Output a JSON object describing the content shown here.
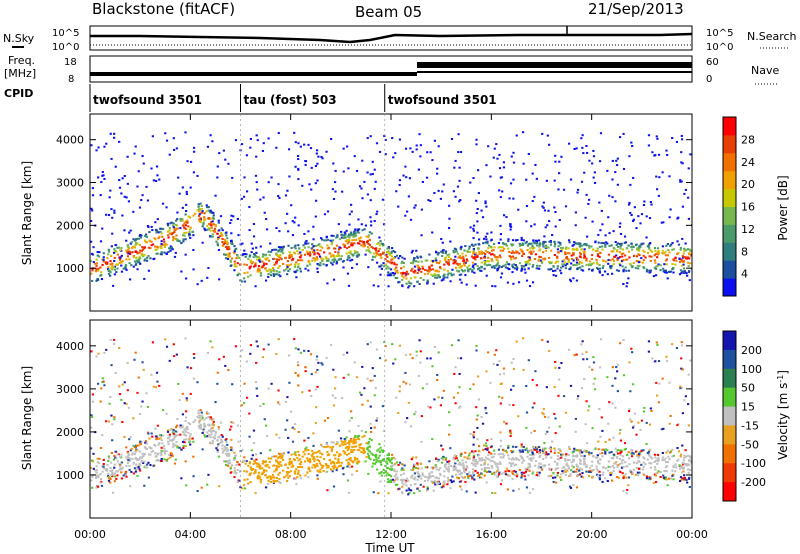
{
  "header": {
    "station": "Blackstone (fitACF)",
    "beam": "Beam 05",
    "date": "21/Sep/2013"
  },
  "top_labels": {
    "nsky": "N.Sky",
    "freq_line1": "Freq.",
    "freq_line2": "[MHz]",
    "cpid": "CPID",
    "nsearch": "N.Search",
    "nave": "Nave"
  },
  "noise_panel": {
    "left_ticks": [
      "10^5",
      "10^0"
    ],
    "right_ticks": [
      "10^5",
      "10^0"
    ]
  },
  "freq_panel": {
    "left_ticks": [
      "18",
      "8"
    ],
    "right_ticks": [
      "60",
      "0"
    ]
  },
  "cpid_segments": [
    {
      "label": "twofsound 3501",
      "start_hour": 0,
      "end_hour": 6
    },
    {
      "label": "tau (fost) 503",
      "start_hour": 6,
      "end_hour": 11.75
    },
    {
      "label": "twofsound 3501",
      "start_hour": 11.75,
      "end_hour": 24
    }
  ],
  "x_axis": {
    "label": "Time UT",
    "ticks": [
      "00:00",
      "04:00",
      "08:00",
      "12:00",
      "16:00",
      "20:00",
      "00:00"
    ],
    "tick_hours": [
      0,
      4,
      8,
      12,
      16,
      20,
      24
    ]
  },
  "y_axis": {
    "label": "Slant Range [km]",
    "ticks": [
      "1000",
      "2000",
      "3000",
      "4000"
    ],
    "tick_values": [
      1000,
      2000,
      3000,
      4000
    ],
    "range": [
      0,
      4600
    ]
  },
  "power_colorbar": {
    "label": "Power [dB]",
    "ticks": [
      "4",
      "8",
      "12",
      "16",
      "20",
      "24",
      "28"
    ],
    "colors": [
      "#0b10f0",
      "#1d4fa0",
      "#2f7d7d",
      "#4a9a6a",
      "#76b84d",
      "#c8c800",
      "#f0a000",
      "#f07000",
      "#e84000",
      "#ff0000"
    ]
  },
  "velocity_colorbar": {
    "label_main": "Velocity [m s",
    "label_sup": "-1",
    "label_end": "]",
    "ticks": [
      "200",
      "100",
      "50",
      "15",
      "-15",
      "-50",
      "-100",
      "-200"
    ],
    "colors": [
      "#1515b0",
      "#2050a0",
      "#2a8050",
      "#55c830",
      "#c0c0c0",
      "#e8a020",
      "#f07000",
      "#f03a00",
      "#ff0000"
    ]
  },
  "chart_data": [
    {
      "type": "heatmap",
      "title": "Power",
      "xlabel": "Time UT",
      "ylabel": "Slant Range [km]",
      "xlim": [
        0,
        24
      ],
      "ylim": [
        0,
        4600
      ],
      "color_label": "Power [dB]",
      "color_ticks": [
        4,
        8,
        12,
        16,
        20,
        24,
        28
      ],
      "main_echo_band_km": [
        {
          "hour": 0,
          "range": 1000
        },
        {
          "hour": 3,
          "range": 1700
        },
        {
          "hour": 4.5,
          "range": 2300
        },
        {
          "hour": 6,
          "range": 1000
        },
        {
          "hour": 9,
          "range": 1350
        },
        {
          "hour": 11,
          "range": 1650
        },
        {
          "hour": 12.5,
          "range": 900
        },
        {
          "hour": 16,
          "range": 1350
        },
        {
          "hour": 20,
          "range": 1300
        },
        {
          "hour": 24,
          "range": 1250
        }
      ]
    },
    {
      "type": "heatmap",
      "title": "Velocity",
      "xlabel": "Time UT",
      "ylabel": "Slant Range [km]",
      "xlim": [
        0,
        24
      ],
      "ylim": [
        0,
        4600
      ],
      "color_label": "Velocity [m s-1]",
      "color_ticks": [
        -200,
        -100,
        -50,
        -15,
        15,
        50,
        100,
        200
      ]
    }
  ]
}
